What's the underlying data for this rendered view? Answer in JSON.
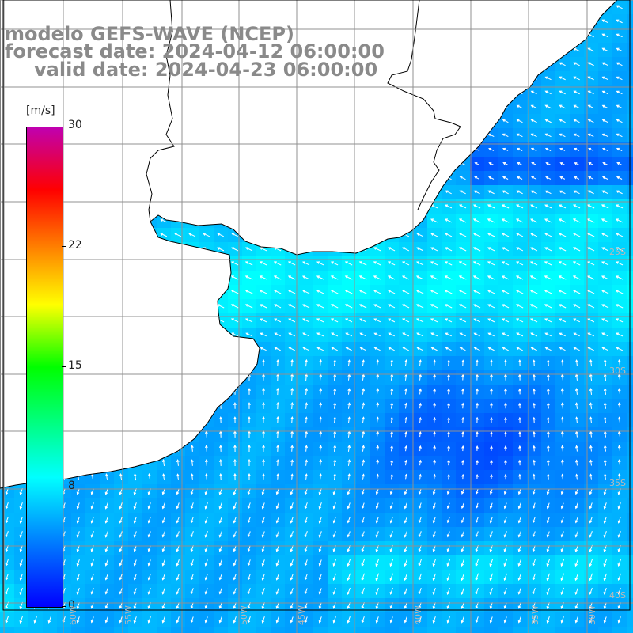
{
  "header": {
    "line1": "modelo GEFS-WAVE (NCEP)",
    "line2": "forecast date: 2024-04-12 06:00:00",
    "line3": "valid date: 2024-04-23 06:00:00"
  },
  "colorbar": {
    "unit": "[m/s]",
    "ticks": [
      "30",
      "22",
      "15",
      "8",
      "0"
    ],
    "min": 0,
    "max": 30,
    "colors": [
      "#0000ff",
      "#0078ff",
      "#00ffff",
      "#00ff00",
      "#ffff00",
      "#ff8000",
      "#ff0000",
      "#c000b0"
    ]
  },
  "axis_labels": {
    "latitudes": [
      "25S",
      "30S",
      "35S",
      "40S"
    ],
    "longitudes": [
      "60W",
      "55W",
      "50W",
      "45W",
      "40W",
      "35W",
      "30W"
    ]
  },
  "style": {
    "land_color": "#ffffff",
    "grid_color": "#909090",
    "coast_color": "#000000",
    "title_color": "#8a8a8a"
  }
}
